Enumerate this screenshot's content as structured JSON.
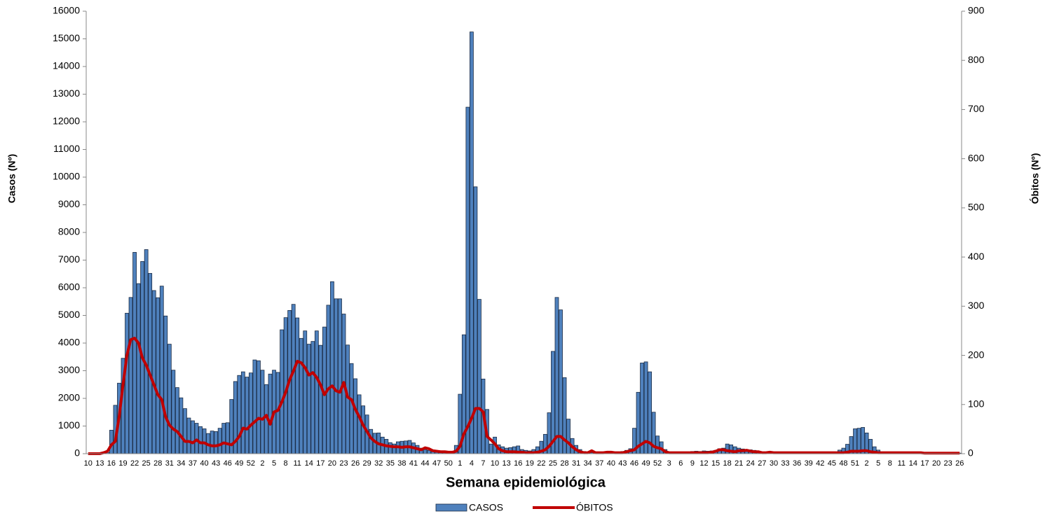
{
  "chart_data": {
    "type": "bar",
    "xlabel": "Semana epidemiológica",
    "ylabel": "Casos (Nº)",
    "y2label": "Óbitos (Nº)",
    "categories": [
      "10",
      null,
      null,
      "13",
      null,
      null,
      "16",
      null,
      null,
      "19",
      null,
      null,
      "22",
      null,
      null,
      "25",
      null,
      null,
      "28",
      null,
      null,
      "31",
      null,
      null,
      "34",
      null,
      null,
      "37",
      null,
      null,
      "40",
      null,
      null,
      "43",
      null,
      null,
      "46",
      null,
      null,
      "49",
      null,
      null,
      "52",
      null,
      null,
      "2",
      null,
      null,
      "5",
      null,
      null,
      "8",
      null,
      null,
      "11",
      null,
      null,
      "14",
      null,
      null,
      "17",
      null,
      null,
      "20",
      null,
      null,
      "23",
      null,
      null,
      "26",
      null,
      null,
      "29",
      null,
      null,
      "32",
      null,
      null,
      "35",
      null,
      null,
      "38",
      null,
      null,
      "41",
      null,
      null,
      "44",
      null,
      null,
      "47",
      null,
      null,
      "50",
      null,
      null,
      "1",
      null,
      null,
      "4",
      null,
      null,
      "7",
      null,
      null,
      "10",
      null,
      null,
      "13",
      null,
      null,
      "16",
      null,
      null,
      "19",
      null,
      null,
      "22",
      null,
      null,
      "25",
      null,
      null,
      "28",
      null,
      null,
      "31",
      null,
      null,
      "34",
      null,
      null,
      "37",
      null,
      null,
      "40",
      null,
      null,
      "43",
      null,
      null,
      "46",
      null,
      null,
      "49",
      null,
      null,
      "52",
      null,
      null,
      "3",
      null,
      null,
      "6",
      null,
      null,
      "9",
      null,
      null,
      "12",
      null,
      null,
      "15",
      null,
      null,
      "18",
      null,
      null,
      "21",
      null,
      null,
      "24",
      null,
      null,
      "27",
      null,
      null,
      "30",
      null,
      null,
      "33",
      null,
      null,
      "36",
      null,
      null,
      "39",
      null,
      null,
      "42",
      null,
      null,
      "45",
      null,
      null,
      "48",
      null,
      null,
      "51",
      null,
      null,
      "2",
      null,
      null,
      "5",
      null,
      null,
      "8",
      null,
      null,
      "11",
      null,
      null,
      "14",
      null,
      null,
      "17",
      null,
      null,
      "20",
      null,
      null,
      "23",
      null,
      null,
      "26"
    ],
    "series": [
      {
        "name": "CASOS",
        "type": "bar",
        "color": "#4f81bd",
        "values": [
          0,
          0,
          0,
          0,
          0,
          50,
          850,
          1750,
          2550,
          3450,
          5080,
          5650,
          7280,
          6150,
          6950,
          7380,
          6520,
          5900,
          5640,
          6060,
          4980,
          3960,
          3020,
          2390,
          2020,
          1630,
          1290,
          1190,
          1100,
          980,
          900,
          730,
          820,
          800,
          920,
          1100,
          1120,
          1960,
          2610,
          2830,
          2960,
          2770,
          2920,
          3390,
          3360,
          3020,
          2500,
          2880,
          3020,
          2940,
          4480,
          4920,
          5180,
          5400,
          4910,
          4170,
          4440,
          3960,
          4060,
          4440,
          3920,
          4580,
          5370,
          6220,
          5600,
          5600,
          5050,
          3930,
          3260,
          2710,
          2130,
          1730,
          1400,
          880,
          740,
          750,
          600,
          520,
          400,
          350,
          430,
          450,
          460,
          480,
          390,
          300,
          200,
          150,
          120,
          100,
          80,
          60,
          60,
          50,
          50,
          300,
          2150,
          4300,
          12530,
          15250,
          9650,
          5580,
          2700,
          1600,
          350,
          600,
          320,
          250,
          200,
          220,
          250,
          280,
          150,
          120,
          100,
          150,
          250,
          450,
          700,
          1480,
          3700,
          5650,
          5200,
          2750,
          1250,
          550,
          300,
          150,
          80,
          50,
          40,
          40,
          50,
          60,
          80,
          80,
          60,
          50,
          80,
          120,
          180,
          920,
          2220,
          3280,
          3320,
          2960,
          1500,
          640,
          430,
          150,
          60,
          30,
          30,
          30,
          40,
          60,
          80,
          90,
          80,
          100,
          90,
          100,
          120,
          180,
          200,
          350,
          320,
          250,
          200,
          170,
          150,
          140,
          120,
          80,
          60,
          50,
          40,
          30,
          30,
          30,
          40,
          40,
          30,
          30,
          40,
          40,
          30,
          40,
          40,
          50,
          40,
          50,
          60,
          60,
          130,
          200,
          340,
          620,
          900,
          920,
          950,
          750,
          520,
          250,
          130,
          60,
          40,
          30,
          20,
          20,
          20,
          30,
          30,
          20,
          20,
          20,
          20,
          20,
          20,
          20,
          20,
          20,
          20,
          20,
          20,
          20
        ]
      },
      {
        "name": "ÓBITOS",
        "type": "line",
        "axis": "y2",
        "color": "#c00000",
        "values": [
          0,
          0,
          0,
          0,
          2,
          5,
          18,
          25,
          75,
          140,
          200,
          232,
          235,
          225,
          195,
          180,
          160,
          140,
          120,
          110,
          75,
          58,
          50,
          45,
          35,
          25,
          25,
          22,
          28,
          22,
          22,
          18,
          16,
          16,
          18,
          22,
          20,
          18,
          25,
          35,
          52,
          50,
          58,
          65,
          72,
          70,
          78,
          60,
          85,
          88,
          105,
          125,
          150,
          168,
          188,
          185,
          175,
          160,
          165,
          155,
          140,
          120,
          132,
          138,
          128,
          125,
          145,
          115,
          110,
          90,
          75,
          58,
          45,
          32,
          25,
          20,
          18,
          16,
          15,
          14,
          14,
          13,
          14,
          14,
          12,
          10,
          8,
          12,
          10,
          6,
          5,
          4,
          4,
          3,
          3,
          5,
          15,
          40,
          55,
          72,
          92,
          92,
          85,
          35,
          28,
          20,
          10,
          6,
          4,
          4,
          4,
          3,
          3,
          2,
          2,
          2,
          3,
          5,
          8,
          15,
          25,
          35,
          35,
          28,
          22,
          14,
          8,
          4,
          2,
          2,
          6,
          2,
          2,
          2,
          3,
          3,
          2,
          2,
          2,
          4,
          6,
          8,
          15,
          20,
          25,
          22,
          15,
          12,
          10,
          4,
          2,
          2,
          2,
          2,
          2,
          2,
          2,
          2,
          2,
          2,
          2,
          3,
          5,
          8,
          8,
          6,
          5,
          4,
          6,
          6,
          7,
          5,
          4,
          4,
          2,
          2,
          3,
          2,
          2,
          2,
          2,
          2,
          2,
          2,
          2,
          2,
          2,
          2,
          2,
          2,
          2,
          2,
          2,
          2,
          2,
          2,
          3,
          5,
          5,
          5,
          6,
          6,
          4,
          3,
          2,
          2,
          2,
          2,
          2,
          2,
          2,
          2,
          2,
          2,
          2,
          2,
          1,
          1,
          1,
          1,
          1,
          1,
          1,
          1,
          1,
          1
        ]
      }
    ],
    "ylim": [
      0,
      16000
    ],
    "yticks": [
      0,
      1000,
      2000,
      3000,
      4000,
      5000,
      6000,
      7000,
      8000,
      9000,
      10000,
      11000,
      12000,
      13000,
      14000,
      15000,
      16000
    ],
    "y2lim": [
      0,
      900
    ],
    "y2ticks": [
      0,
      100,
      200,
      300,
      400,
      500,
      600,
      700,
      800,
      900
    ],
    "legend": "bottom"
  }
}
